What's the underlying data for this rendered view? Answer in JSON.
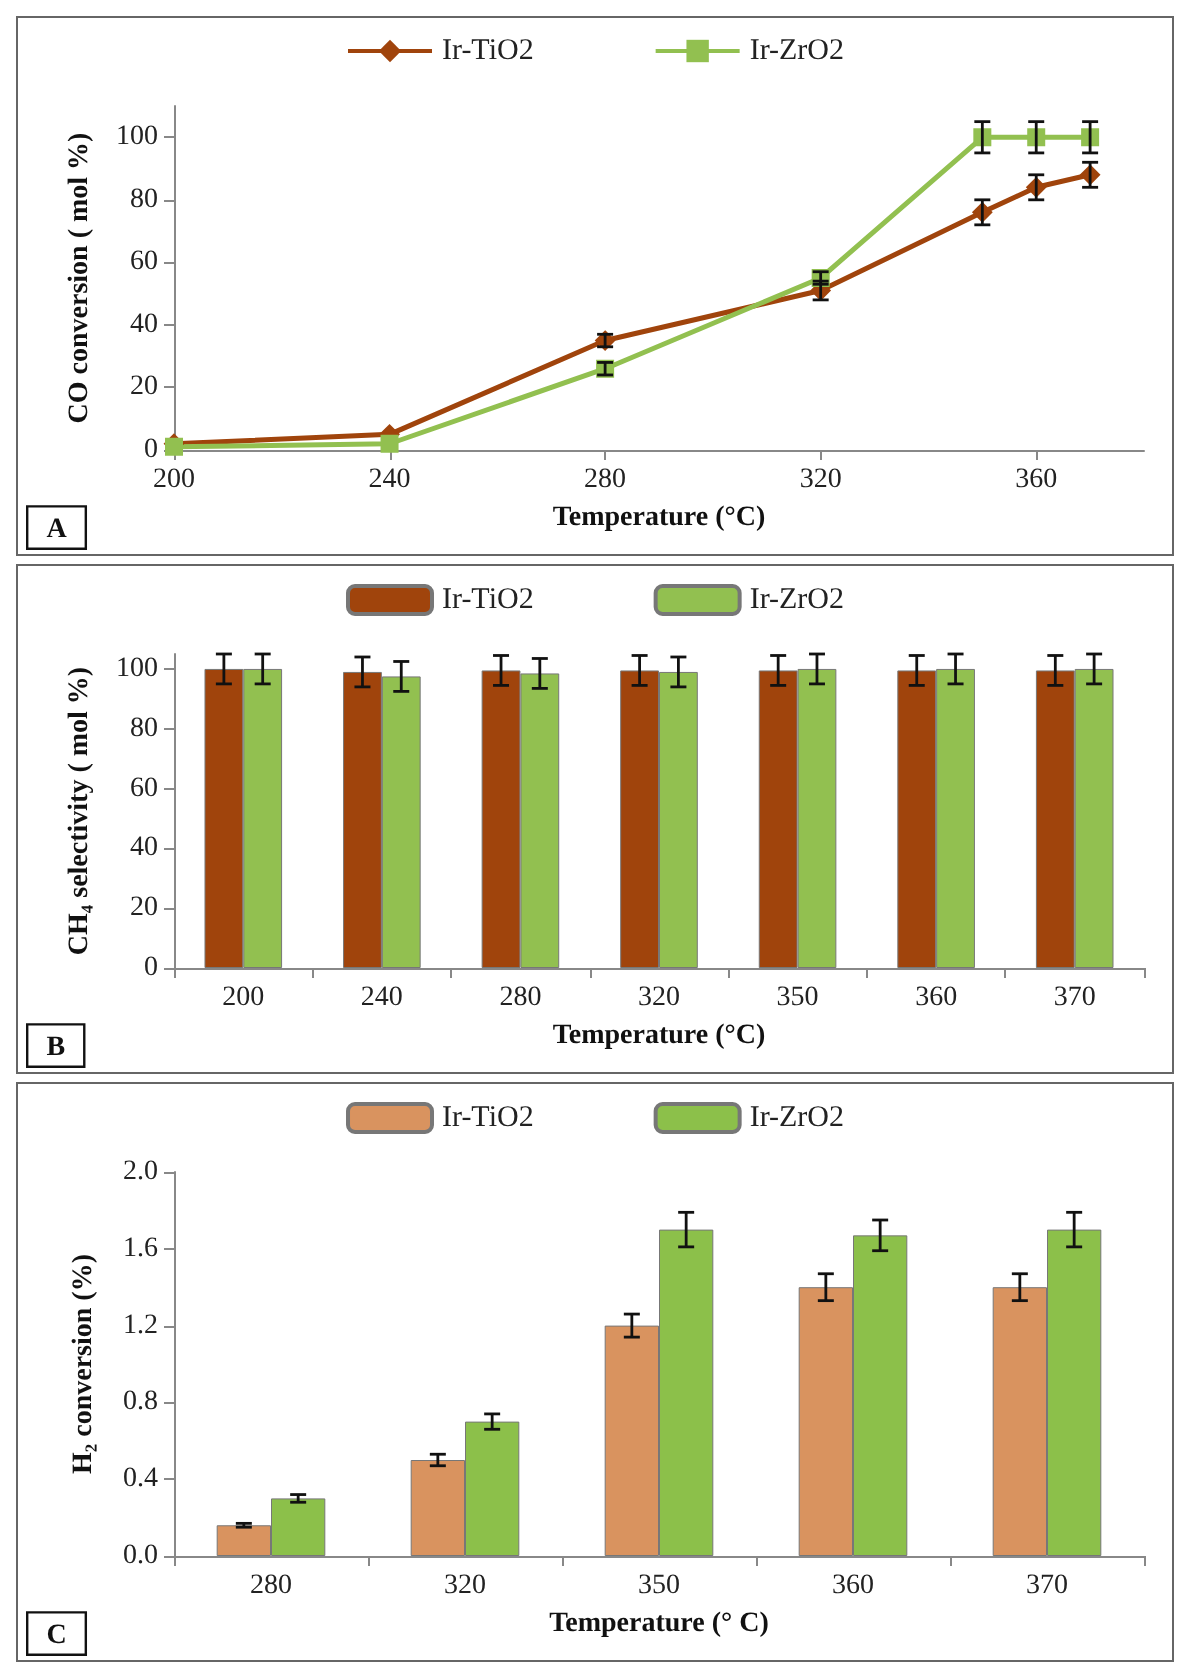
{
  "chart_data": [
    {
      "type": "line",
      "xlabel": "Temperature (°C)",
      "ylabel": "CO conversion ( mol %)",
      "x": [
        200,
        240,
        280,
        320,
        350,
        360,
        370
      ],
      "xlim": [
        200,
        380
      ],
      "xticks": [
        200,
        240,
        280,
        320,
        360
      ],
      "ylim": [
        0,
        110
      ],
      "yticks": [
        0,
        20,
        40,
        60,
        80,
        100
      ],
      "legend": "top",
      "grid": false,
      "annotations": [
        "A"
      ],
      "series": [
        {
          "name": "Ir-TiO2",
          "color": "#a0440c",
          "marker": "diamond",
          "values": [
            2,
            5,
            35,
            51,
            76,
            84,
            88
          ],
          "errors": [
            null,
            null,
            2,
            3,
            4,
            4,
            4
          ]
        },
        {
          "name": "Ir-ZrO2",
          "color": "#92c050",
          "marker": "square",
          "values": [
            1,
            2,
            26,
            55,
            100,
            100,
            100
          ],
          "errors": [
            null,
            null,
            2,
            2,
            5,
            5,
            5
          ]
        }
      ]
    },
    {
      "type": "bar",
      "xlabel": "Temperature (°C)",
      "ylabel": "CH₄ selectivity ( mol %)",
      "categories": [
        "200",
        "240",
        "280",
        "320",
        "350",
        "360",
        "370"
      ],
      "ylim": [
        0,
        105
      ],
      "yticks": [
        0,
        20,
        40,
        60,
        80,
        100
      ],
      "legend": "top",
      "grid": false,
      "annotations": [
        "B"
      ],
      "series": [
        {
          "name": "Ir-TiO2",
          "color": "#a0440c",
          "values": [
            100,
            99,
            99.5,
            99.5,
            99.5,
            99.5,
            99.5
          ],
          "errors": [
            5,
            5,
            5,
            5,
            5,
            5,
            5
          ]
        },
        {
          "name": "Ir-ZrO2",
          "color": "#92c050",
          "values": [
            100,
            97.5,
            98.5,
            99,
            100,
            100,
            100
          ],
          "errors": [
            5,
            5,
            5,
            5,
            5,
            5,
            5
          ]
        }
      ]
    },
    {
      "type": "bar",
      "xlabel": "Temperature (° C)",
      "ylabel": "H₂ conversion (%)",
      "categories": [
        "280",
        "320",
        "350",
        "360",
        "370"
      ],
      "ylim": [
        0,
        2
      ],
      "yticks": [
        {
          "value": 0,
          "label": "0.0"
        },
        0.4,
        0.8,
        1.2,
        1.6,
        {
          "value": 2,
          "label": "2.0"
        }
      ],
      "legend": "top",
      "grid": false,
      "annotations": [
        "C"
      ],
      "series": [
        {
          "name": "Ir-TiO2",
          "color": "#d9935f",
          "values": [
            0.16,
            0.5,
            1.2,
            1.4,
            1.4
          ],
          "errors": [
            0.01,
            0.03,
            0.06,
            0.07,
            0.07
          ]
        },
        {
          "name": "Ir-ZrO2",
          "color": "#8cc04a",
          "values": [
            0.3,
            0.7,
            1.7,
            1.67,
            1.7
          ],
          "errors": [
            0.02,
            0.04,
            0.09,
            0.08,
            0.09
          ]
        }
      ]
    }
  ]
}
